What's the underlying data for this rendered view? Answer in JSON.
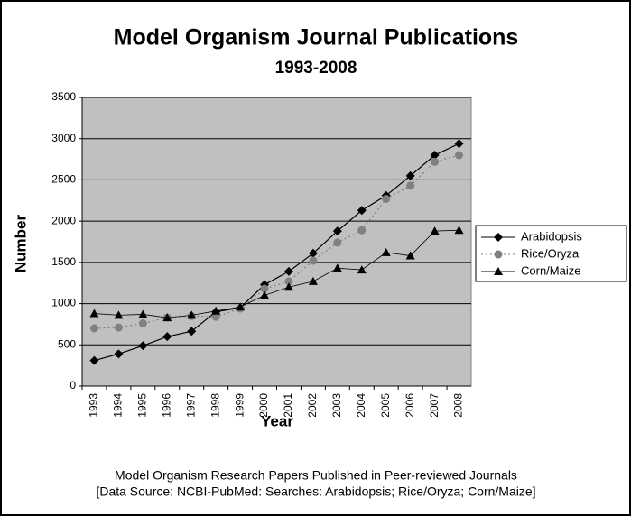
{
  "chart_data": {
    "type": "line",
    "title": "Model Organism Journal Publications",
    "subtitle": "1993-2008",
    "x_label": "Year",
    "y_label": "Number",
    "caption": [
      "Model Organism Research Papers Published in Peer-reviewed Journals",
      "[Data Source: NCBI-PubMed: Searches: Arabidopsis; Rice/Oryza; Corn/Maize]"
    ],
    "categories": [
      "1993",
      "1994",
      "1995",
      "1996",
      "1997",
      "1998",
      "1999",
      "2000",
      "2001",
      "2002",
      "2003",
      "2004",
      "2005",
      "2006",
      "2007",
      "2008"
    ],
    "series": [
      {
        "name": "Arabidopsis",
        "color": "#000000",
        "marker": "diamond",
        "dash": "solid",
        "values": [
          310,
          390,
          490,
          600,
          665,
          900,
          950,
          1230,
          1390,
          1610,
          1880,
          2130,
          2310,
          2550,
          2800,
          2940
        ]
      },
      {
        "name": "Rice/Oryza",
        "color": "#808080",
        "marker": "circle",
        "dash": "dotted",
        "values": [
          700,
          710,
          760,
          830,
          850,
          840,
          940,
          1180,
          1270,
          1520,
          1740,
          1890,
          2270,
          2430,
          2720,
          2800
        ]
      },
      {
        "name": "Corn/Maize",
        "color": "#000000",
        "marker": "triangle",
        "dash": "solid",
        "values": [
          880,
          860,
          870,
          830,
          860,
          910,
          960,
          1100,
          1200,
          1270,
          1430,
          1410,
          1620,
          1580,
          1880,
          1890
        ]
      }
    ],
    "ylim": [
      0,
      3500
    ],
    "yticks": [
      0,
      500,
      1000,
      1500,
      2000,
      2500,
      3000,
      3500
    ],
    "grid": true,
    "legend": "right",
    "plot_background": "#c0c0c0"
  }
}
